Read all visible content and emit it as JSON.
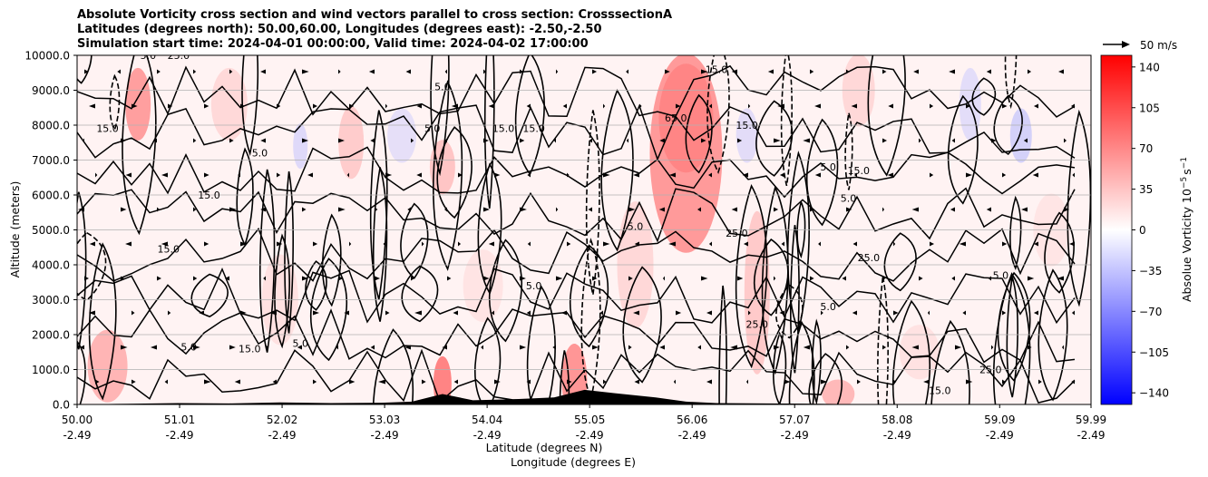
{
  "title_lines": [
    "Absolute Vorticity cross section and wind vectors parallel to cross section: CrosssectionA",
    "Latitudes (degrees north): 50.00,60.00, Longitudes (degrees east): -2.50,-2.50",
    "Simulation start time: 2024-04-01 00:00:00, Valid time: 2024-04-02 17:00:00"
  ],
  "chart_data": {
    "type": "heatmap",
    "title": "Absolute Vorticity cross section and wind vectors parallel to cross section: CrosssectionA",
    "xlabel": "Latitude (degrees N)",
    "xlabel2": "Longitude (degrees E)",
    "ylabel": "Altitude (meters)",
    "x_ticks_lat": [
      "50.00",
      "51.01",
      "52.02",
      "53.03",
      "54.04",
      "55.05",
      "56.06",
      "57.07",
      "58.08",
      "59.09",
      "59.99"
    ],
    "x_ticks_lon": [
      "-2.49",
      "-2.49",
      "-2.49",
      "-2.49",
      "-2.49",
      "-2.49",
      "-2.49",
      "-2.49",
      "-2.49",
      "-2.49",
      "-2.49"
    ],
    "xlim": [
      50.0,
      59.99
    ],
    "y_ticks": [
      "0.0",
      "1000.0",
      "2000.0",
      "3000.0",
      "4000.0",
      "5000.0",
      "6000.0",
      "7000.0",
      "8000.0",
      "9000.0",
      "10000.0"
    ],
    "ylim": [
      0,
      10000
    ],
    "grid": "horizontal",
    "colorbar": {
      "label": "Absolue Vorticity 10^-5 s^-1",
      "label_main": "Absolue Vorticity 10",
      "label_exp": "−5",
      "label_unit": "s",
      "label_unit_exp": "−1",
      "range": [
        -150,
        150
      ],
      "ticks": [
        "140",
        "105",
        "70",
        "35",
        "0",
        "−35",
        "−70",
        "−105",
        "−140"
      ],
      "tick_values": [
        140,
        105,
        70,
        35,
        0,
        -35,
        -70,
        -105,
        -140
      ],
      "colormap": "bwr",
      "color_low": "#0000ff",
      "color_mid": "#ffffff",
      "color_high": "#ff0000"
    },
    "quiver_key": {
      "label": "50 m/s"
    },
    "contour_labels": [
      {
        "lat": 50.7,
        "alt": 9900,
        "text": "5.0"
      },
      {
        "lat": 51.0,
        "alt": 9900,
        "text": "25.0"
      },
      {
        "lat": 50.3,
        "alt": 7800,
        "text": "15.0"
      },
      {
        "lat": 51.8,
        "alt": 7100,
        "text": "5.0"
      },
      {
        "lat": 50.9,
        "alt": 4350,
        "text": "15.0"
      },
      {
        "lat": 51.7,
        "alt": 1500,
        "text": "15.0"
      },
      {
        "lat": 51.1,
        "alt": 1550,
        "text": "5.0"
      },
      {
        "lat": 53.6,
        "alt": 9000,
        "text": "5.0"
      },
      {
        "lat": 53.5,
        "alt": 7800,
        "text": "5.0"
      },
      {
        "lat": 54.2,
        "alt": 7800,
        "text": "15.0"
      },
      {
        "lat": 54.5,
        "alt": 7800,
        "text": "15.0"
      },
      {
        "lat": 55.5,
        "alt": 5000,
        "text": "5.0"
      },
      {
        "lat": 56.6,
        "alt": 7900,
        "text": "15.0"
      },
      {
        "lat": 56.3,
        "alt": 9500,
        "text": "15.0"
      },
      {
        "lat": 55.9,
        "alt": 8100,
        "text": "65.0"
      },
      {
        "lat": 57.4,
        "alt": 6700,
        "text": "5.0"
      },
      {
        "lat": 57.7,
        "alt": 6600,
        "text": "15.0"
      },
      {
        "lat": 57.6,
        "alt": 5800,
        "text": "5.0"
      },
      {
        "lat": 56.5,
        "alt": 4800,
        "text": "25.0"
      },
      {
        "lat": 57.8,
        "alt": 4100,
        "text": "25.0"
      },
      {
        "lat": 57.4,
        "alt": 2700,
        "text": "5.0"
      },
      {
        "lat": 59.1,
        "alt": 3600,
        "text": "5.0"
      },
      {
        "lat": 56.7,
        "alt": 2200,
        "text": "25.0"
      },
      {
        "lat": 59.0,
        "alt": 900,
        "text": "25.0"
      },
      {
        "lat": 58.5,
        "alt": 300,
        "text": "15.0"
      },
      {
        "lat": 51.3,
        "alt": 5900,
        "text": "15.0"
      },
      {
        "lat": 54.5,
        "alt": 3300,
        "text": "5.0"
      },
      {
        "lat": 52.2,
        "alt": 1650,
        "text": "5.0"
      }
    ]
  }
}
